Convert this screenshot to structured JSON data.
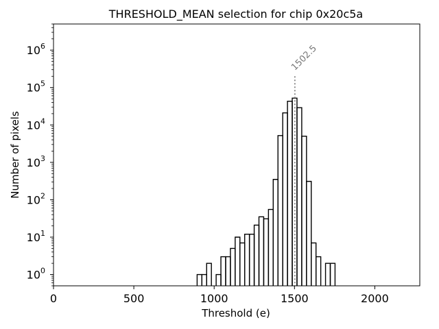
{
  "chart_data": {
    "type": "histogram",
    "title": "THRESHOLD_MEAN selection for chip 0x20c5a",
    "xlabel": "Threshold (e)",
    "ylabel": "Number of pixels",
    "xlim": [
      0,
      2280
    ],
    "ylim": [
      0.5,
      5000000
    ],
    "yscale": "log",
    "grid": false,
    "x_ticks": [
      0,
      500,
      1000,
      1500,
      2000
    ],
    "y_ticks": [
      {
        "base": "10",
        "exp": "0",
        "value": 1
      },
      {
        "base": "10",
        "exp": "1",
        "value": 10
      },
      {
        "base": "10",
        "exp": "2",
        "value": 100
      },
      {
        "base": "10",
        "exp": "3",
        "value": 1000
      },
      {
        "base": "10",
        "exp": "4",
        "value": 10000
      },
      {
        "base": "10",
        "exp": "5",
        "value": 100000
      },
      {
        "base": "10",
        "exp": "6",
        "value": 1000000
      }
    ],
    "bin_width": 29.6,
    "bin_left_edges": [
      894,
      923.6,
      953.2,
      982.8,
      1012.4,
      1042,
      1071.6,
      1101.2,
      1130.8,
      1160.4,
      1190,
      1219.6,
      1249.2,
      1278.8,
      1308.4,
      1338,
      1367.6,
      1397.2,
      1426.8,
      1456.4,
      1486,
      1515.6,
      1545.2,
      1574.8,
      1604.4,
      1634,
      1663.6,
      1693.2,
      1722.8,
      1752.4
    ],
    "counts": [
      1,
      1,
      2,
      0,
      1,
      3,
      3,
      5,
      10,
      7,
      12,
      12,
      21,
      35,
      31,
      55,
      350,
      5200,
      21000,
      43000,
      52000,
      29000,
      5000,
      310,
      7,
      3,
      0,
      2,
      2,
      0
    ],
    "marker": {
      "x": 1502.5,
      "label": "1502.5",
      "y_top": 200000
    }
  }
}
